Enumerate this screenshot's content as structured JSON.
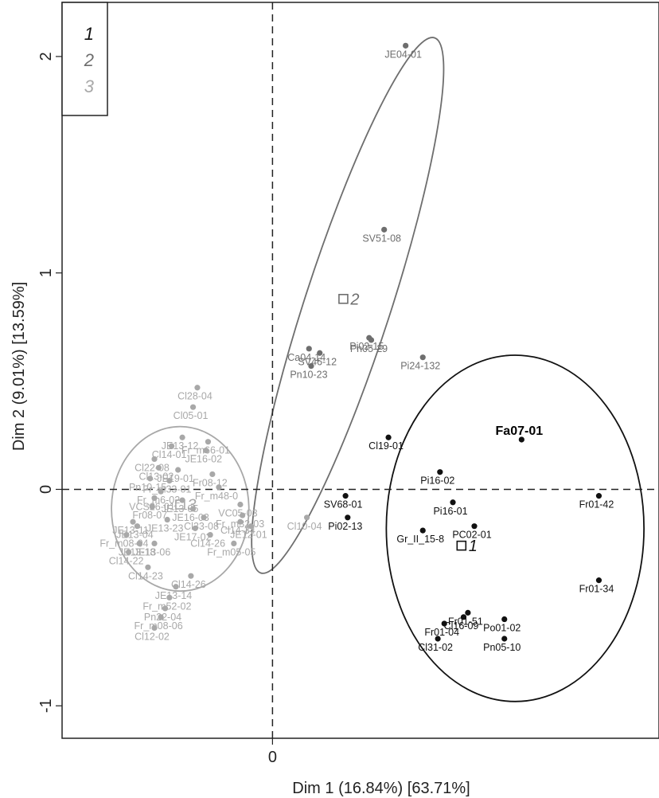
{
  "chart_data": {
    "type": "scatter",
    "title": "",
    "xlabel": "Dim 1 (16.84%) [63.71%]",
    "ylabel": "Dim 2 (9.01%) [13.59%]",
    "xlim": [
      -0.98,
      1.8
    ],
    "ylim": [
      -1.15,
      2.25
    ],
    "xticks": [
      {
        "value": 0,
        "label": "0"
      }
    ],
    "yticks": [
      {
        "value": -1,
        "label": "-1"
      },
      {
        "value": 0,
        "label": "0"
      },
      {
        "value": 1,
        "label": "1"
      },
      {
        "value": 2,
        "label": "2"
      }
    ],
    "grid": false,
    "legend": {
      "position": "top-left",
      "entries": [
        "1",
        "2",
        "3"
      ]
    },
    "reference_lines": {
      "x": 0,
      "y": 0
    },
    "colors": {
      "1": "#111111",
      "2": "#6e6e6e",
      "3": "#a8a8a8"
    },
    "series": [
      {
        "name": "1",
        "centroid": {
          "x": 0.88,
          "y": -0.26,
          "label": "1"
        },
        "ellipse": {
          "cx": 1.13,
          "cy": -0.18,
          "rx": 0.6,
          "ry": 0.8
        },
        "points": [
          {
            "label": "Fa07-01",
            "x": 1.16,
            "y": 0.23,
            "bold": true
          },
          {
            "label": "Cl19-01",
            "x": 0.54,
            "y": 0.24
          },
          {
            "label": "Pi16-02",
            "x": 0.78,
            "y": 0.08
          },
          {
            "label": "Fr01-42",
            "x": 1.52,
            "y": -0.03
          },
          {
            "label": "SV68-01",
            "x": 0.34,
            "y": -0.03
          },
          {
            "label": "Pi16-01",
            "x": 0.84,
            "y": -0.06
          },
          {
            "label": "Pi02-13",
            "x": 0.35,
            "y": -0.13
          },
          {
            "label": "PC02-01",
            "x": 0.94,
            "y": -0.17
          },
          {
            "label": "Gr_II_15-8",
            "x": 0.7,
            "y": -0.19
          },
          {
            "label": "Fr01-34",
            "x": 1.52,
            "y": -0.42
          },
          {
            "label": "Fr01-51",
            "x": 0.91,
            "y": -0.57
          },
          {
            "label": "Cl16-09",
            "x": 0.89,
            "y": -0.59
          },
          {
            "label": "Po01-02",
            "x": 1.08,
            "y": -0.6
          },
          {
            "label": "Fr01-04",
            "x": 0.8,
            "y": -0.62
          },
          {
            "label": "Cl31-02",
            "x": 0.77,
            "y": -0.69
          },
          {
            "label": "Pn05-10",
            "x": 1.08,
            "y": -0.69
          }
        ]
      },
      {
        "name": "2",
        "centroid": {
          "x": 0.33,
          "y": 0.88,
          "label": "2"
        },
        "ellipse": {
          "cx": 0.35,
          "cy": 0.85,
          "rx": 0.2,
          "ry": 1.3,
          "rotate": 18
        },
        "points": [
          {
            "label": "JE04-01",
            "x": 0.62,
            "y": 2.05
          },
          {
            "label": "SV51-08",
            "x": 0.52,
            "y": 1.2
          },
          {
            "label": "Pi02-15",
            "x": 0.45,
            "y": 0.7
          },
          {
            "label": "Pn05-29",
            "x": 0.46,
            "y": 0.69
          },
          {
            "label": "Ca04-14",
            "x": 0.17,
            "y": 0.65
          },
          {
            "label": "SV46-12",
            "x": 0.22,
            "y": 0.63
          },
          {
            "label": "Pi24-132",
            "x": 0.7,
            "y": 0.61
          },
          {
            "label": "Pn10-23",
            "x": 0.18,
            "y": 0.57
          }
        ]
      },
      {
        "name": "3",
        "centroid": {
          "x": -0.43,
          "y": -0.07,
          "label": "3"
        },
        "ellipse": {
          "cx": -0.43,
          "cy": -0.09,
          "rx": 0.32,
          "ry": 0.38
        },
        "points": [
          {
            "label": "Cl28-04",
            "x": -0.35,
            "y": 0.47
          },
          {
            "label": "Cl05-01",
            "x": -0.37,
            "y": 0.38
          },
          {
            "label": "JE13-12",
            "x": -0.42,
            "y": 0.24
          },
          {
            "label": "Fr_m66-01",
            "x": -0.3,
            "y": 0.22
          },
          {
            "label": "Cl14-01",
            "x": -0.47,
            "y": 0.2
          },
          {
            "label": "JE16-02",
            "x": -0.31,
            "y": 0.18
          },
          {
            "label": "Cl22-08",
            "x": -0.55,
            "y": 0.14
          },
          {
            "label": "Cl13-02",
            "x": -0.53,
            "y": 0.1
          },
          {
            "label": "JE19-01",
            "x": -0.44,
            "y": 0.09
          },
          {
            "label": "Fr08-12",
            "x": -0.28,
            "y": 0.07
          },
          {
            "label": "Pn10-15",
            "x": -0.57,
            "y": 0.05
          },
          {
            "label": "Fr_m33-01",
            "x": -0.48,
            "y": 0.04
          },
          {
            "label": "Fr_m48-0",
            "x": -0.25,
            "y": 0.01
          },
          {
            "label": "Fr_m6-02",
            "x": -0.52,
            "y": -0.01
          },
          {
            "label": "VCS26-01",
            "x": -0.55,
            "y": -0.04
          },
          {
            "label": "JE13-05",
            "x": -0.42,
            "y": -0.05
          },
          {
            "label": "VC05-03",
            "x": -0.15,
            "y": -0.07
          },
          {
            "label": "Fr08-07",
            "x": -0.56,
            "y": -0.08
          },
          {
            "label": "JE16-03",
            "x": -0.37,
            "y": -0.09
          },
          {
            "label": "Fr_m32-03",
            "x": -0.14,
            "y": -0.12
          },
          {
            "label": "Cl33-08",
            "x": -0.32,
            "y": -0.13
          },
          {
            "label": "JE13-11",
            "x": -0.65,
            "y": -0.15
          },
          {
            "label": "Cl10-04",
            "x": 0.16,
            "y": -0.13
          },
          {
            "label": "JE13-23",
            "x": -0.49,
            "y": -0.14
          },
          {
            "label": "Cl14-34",
            "x": -0.15,
            "y": -0.15
          },
          {
            "label": "JE13-04",
            "x": -0.63,
            "y": -0.17
          },
          {
            "label": "JE17-02",
            "x": -0.36,
            "y": -0.18
          },
          {
            "label": "JE12-01",
            "x": -0.1,
            "y": -0.17
          },
          {
            "label": "Fr_m08-04",
            "x": -0.68,
            "y": -0.21
          },
          {
            "label": "Cl14-26",
            "x": -0.29,
            "y": -0.21
          },
          {
            "label": "JE13-18",
            "x": -0.62,
            "y": -0.25
          },
          {
            "label": "JE13-06",
            "x": -0.55,
            "y": -0.25
          },
          {
            "label": "Fr_m05-05",
            "x": -0.18,
            "y": -0.25
          },
          {
            "label": "Cl14-22",
            "x": -0.67,
            "y": -0.29
          },
          {
            "label": "Cl14-23",
            "x": -0.58,
            "y": -0.36
          },
          {
            "label": "Cl14-26",
            "x": -0.38,
            "y": -0.4
          },
          {
            "label": "JE13-14",
            "x": -0.45,
            "y": -0.45
          },
          {
            "label": "Fr_m52-02",
            "x": -0.48,
            "y": -0.5
          },
          {
            "label": "Pn22-04",
            "x": -0.5,
            "y": -0.55
          },
          {
            "label": "Fr_m08-06",
            "x": -0.52,
            "y": -0.59
          },
          {
            "label": "Cl12-02",
            "x": -0.55,
            "y": -0.64
          }
        ]
      }
    ]
  }
}
